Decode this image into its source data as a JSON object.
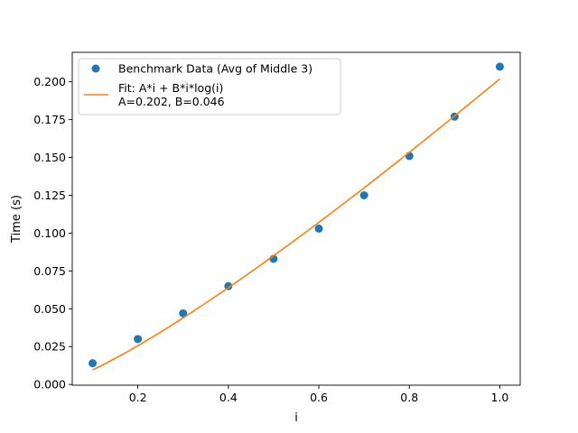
{
  "chart_data": {
    "type": "scatter",
    "title": "",
    "xlabel": "i",
    "ylabel": "Time (s)",
    "xlim": [
      0.055,
      1.045
    ],
    "ylim": [
      -0.0005,
      0.2195
    ],
    "xticks": [
      0.2,
      0.4,
      0.6,
      0.8,
      1.0
    ],
    "xtick_labels": [
      "0.2",
      "0.4",
      "0.6",
      "0.8",
      "1.0"
    ],
    "yticks": [
      0.0,
      0.025,
      0.05,
      0.075,
      0.1,
      0.125,
      0.15,
      0.175,
      0.2
    ],
    "ytick_labels": [
      "0.000",
      "0.025",
      "0.050",
      "0.075",
      "0.100",
      "0.125",
      "0.150",
      "0.175",
      "0.200"
    ],
    "grid": false,
    "legend_position": "upper-left",
    "series": [
      {
        "name": "Benchmark Data (Avg of Middle 3)",
        "kind": "scatter",
        "color": "#1f77b4",
        "x": [
          0.1,
          0.2,
          0.3,
          0.4,
          0.5,
          0.6,
          0.7,
          0.8,
          0.9,
          1.0
        ],
        "y": [
          0.014,
          0.03,
          0.047,
          0.065,
          0.083,
          0.103,
          0.125,
          0.151,
          0.177,
          0.21
        ]
      },
      {
        "name": "Fit: A*i + B*i*log(i)",
        "name_line2": "A=0.202, B=0.046",
        "kind": "line",
        "color": "#ff7f0e",
        "model": "A*i + B*i*log(i)",
        "A": 0.202,
        "B": 0.046,
        "x_range": [
          0.1,
          1.0
        ]
      }
    ]
  }
}
